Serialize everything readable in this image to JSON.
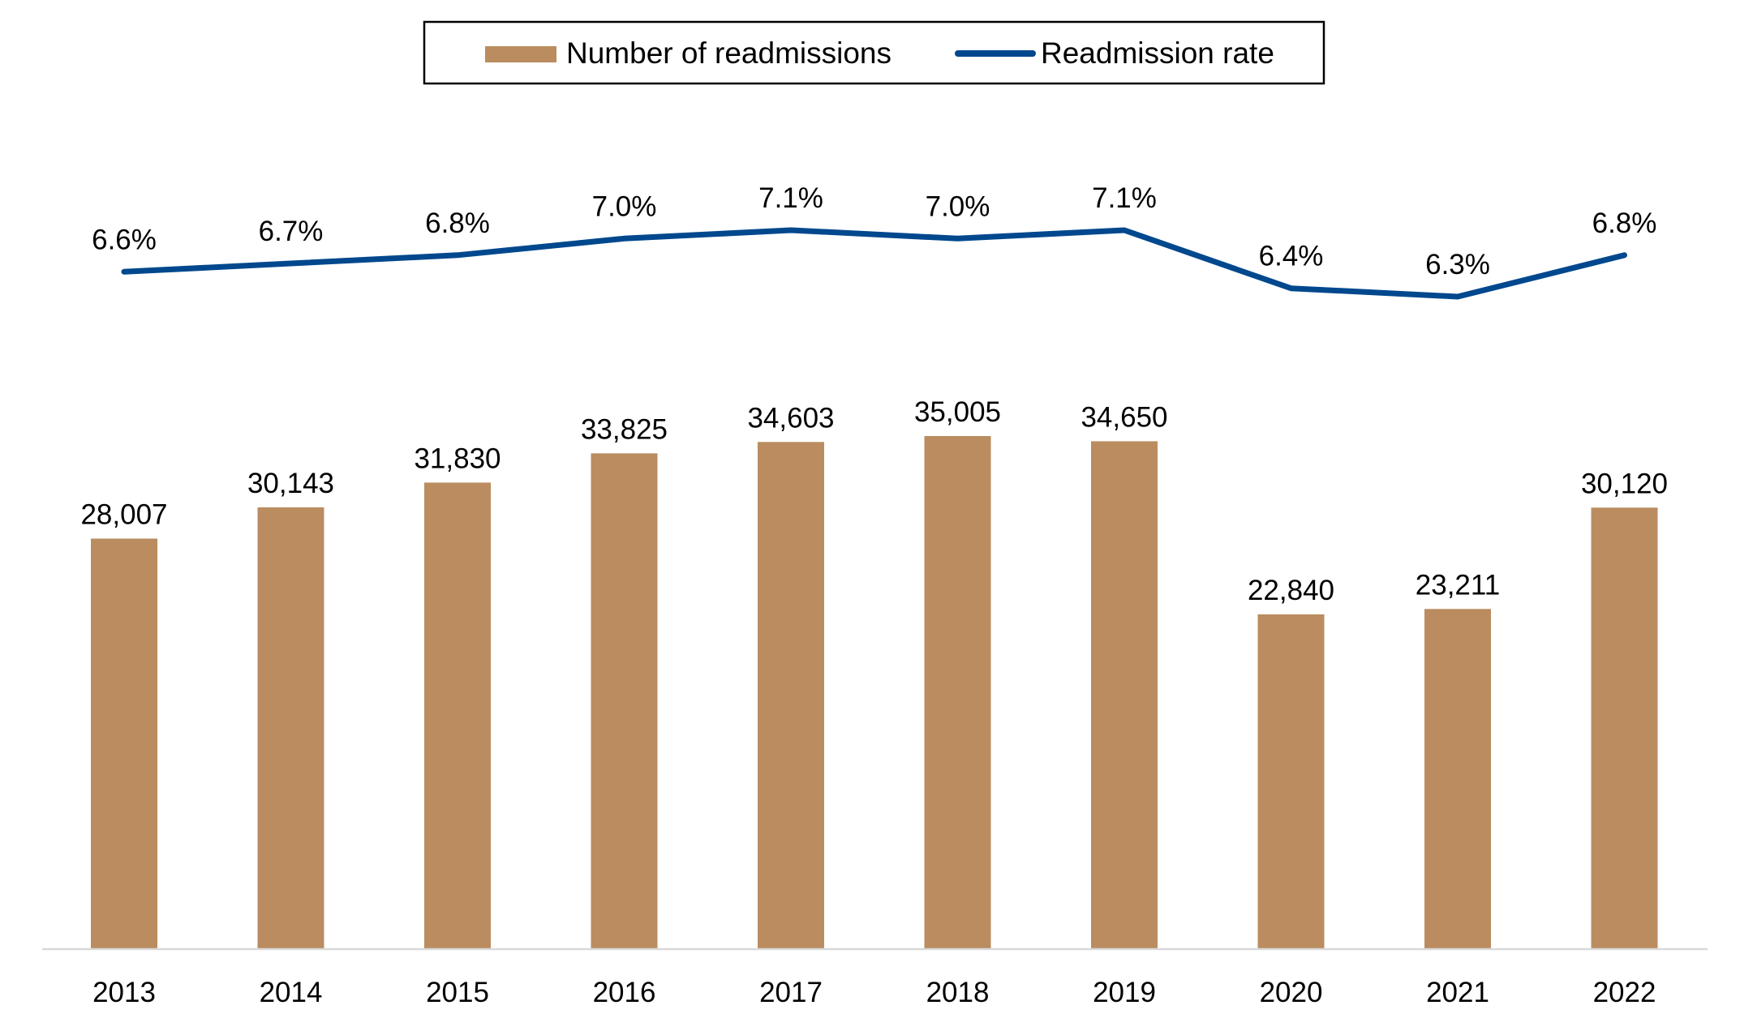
{
  "chart_data": {
    "type": "bar",
    "categories": [
      "2013",
      "2014",
      "2015",
      "2016",
      "2017",
      "2018",
      "2019",
      "2020",
      "2021",
      "2022"
    ],
    "series": [
      {
        "name": "Number of readmissions",
        "type": "bar",
        "color": "#BA8C5F",
        "values": [
          28007,
          30143,
          31830,
          33825,
          34603,
          35005,
          34650,
          22840,
          23211,
          30120
        ],
        "labels": [
          "28,007",
          "30,143",
          "31,830",
          "33,825",
          "34,603",
          "35,005",
          "34,650",
          "22,840",
          "23,211",
          "30,120"
        ]
      },
      {
        "name": "Readmission rate",
        "type": "line",
        "color": "#00488E",
        "values": [
          6.6,
          6.7,
          6.8,
          7.0,
          7.1,
          7.0,
          7.1,
          6.4,
          6.3,
          6.8
        ],
        "labels": [
          "6.6%",
          "6.7%",
          "6.8%",
          "7.0%",
          "7.1%",
          "7.0%",
          "7.1%",
          "6.4%",
          "6.3%",
          "6.8%"
        ]
      }
    ],
    "title": "",
    "xlabel": "",
    "ylabel": "",
    "ylim": [
      0,
      35005
    ],
    "grid": false,
    "legend_position": "top-center"
  }
}
